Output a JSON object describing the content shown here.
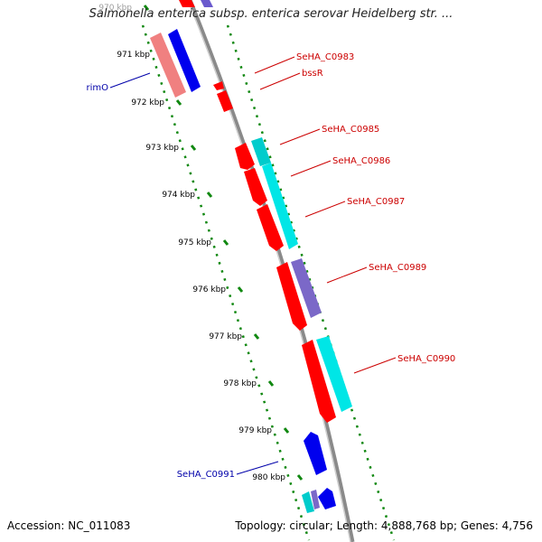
{
  "title": "Salmonella enterica subsp. enterica serovar Heidelberg str. ...",
  "footer": {
    "accession": "Accession: NC_011083",
    "summary": "Topology: circular; Length: 4,888,768 bp; Genes: 4,756"
  },
  "colors": {
    "red": "#ff0000",
    "pink": "#f08080",
    "blue": "#0000ee",
    "cyan": "#00e6e6",
    "purple": "#8060d0",
    "backbone": "#999999",
    "tick_green": "#118811",
    "label_red": "#cc0000",
    "label_blue": "#0000aa"
  },
  "ticks": [
    {
      "label": "970 kbp"
    },
    {
      "label": "971 kbp"
    },
    {
      "label": "972 kbp"
    },
    {
      "label": "973 kbp"
    },
    {
      "label": "974 kbp"
    },
    {
      "label": "975 kbp"
    },
    {
      "label": "976 kbp"
    },
    {
      "label": "977 kbp"
    },
    {
      "label": "978 kbp"
    },
    {
      "label": "979 kbp"
    },
    {
      "label": "980 kbp"
    }
  ],
  "gene_labels": [
    {
      "name": "SeHA_C0983",
      "color": "red"
    },
    {
      "name": "bssR",
      "color": "red"
    },
    {
      "name": "SeHA_C0985",
      "color": "red"
    },
    {
      "name": "SeHA_C0986",
      "color": "red"
    },
    {
      "name": "SeHA_C0987",
      "color": "red"
    },
    {
      "name": "SeHA_C0989",
      "color": "red"
    },
    {
      "name": "SeHA_C0990",
      "color": "red"
    },
    {
      "name": "rimO",
      "color": "blue"
    },
    {
      "name": "SeHA_C0991",
      "color": "blue"
    }
  ]
}
